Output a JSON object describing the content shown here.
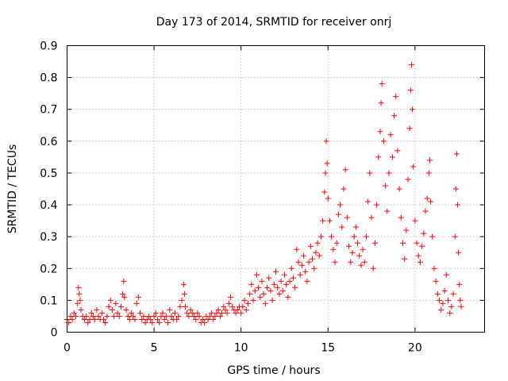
{
  "chart_data": {
    "type": "scatter",
    "title": "Day 173 of 2014, SRMTID for receiver onrj",
    "xlabel": "GPS time / hours",
    "ylabel": "SRMTID / TECUs",
    "xlim": [
      0,
      24
    ],
    "ylim": [
      0,
      0.9
    ],
    "xticks": [
      0,
      5,
      10,
      15,
      20
    ],
    "xtick_labels": [
      "0",
      "5",
      "10",
      "15",
      "20"
    ],
    "yticks": [
      0,
      0.1,
      0.2,
      0.3,
      0.4,
      0.5,
      0.6,
      0.7,
      0.8,
      0.9
    ],
    "ytick_labels": [
      "0",
      "0.1",
      "0.2",
      "0.3",
      "0.4",
      "0.5",
      "0.6",
      "0.7",
      "0.8",
      "0.9"
    ],
    "grid": true,
    "marker": "+",
    "color": "#ff0000",
    "series": [
      {
        "name": "SRMTID",
        "points": [
          [
            0.0,
            0.04
          ],
          [
            0.1,
            0.03
          ],
          [
            0.2,
            0.05
          ],
          [
            0.3,
            0.04
          ],
          [
            0.4,
            0.06
          ],
          [
            0.5,
            0.05
          ],
          [
            0.6,
            0.09
          ],
          [
            0.65,
            0.14
          ],
          [
            0.7,
            0.12
          ],
          [
            0.75,
            0.1
          ],
          [
            0.8,
            0.07
          ],
          [
            0.9,
            0.05
          ],
          [
            1.0,
            0.04
          ],
          [
            1.1,
            0.05
          ],
          [
            1.2,
            0.03
          ],
          [
            1.3,
            0.04
          ],
          [
            1.4,
            0.06
          ],
          [
            1.5,
            0.05
          ],
          [
            1.6,
            0.04
          ],
          [
            1.7,
            0.07
          ],
          [
            1.8,
            0.05
          ],
          [
            1.9,
            0.04
          ],
          [
            2.0,
            0.06
          ],
          [
            2.1,
            0.04
          ],
          [
            2.2,
            0.03
          ],
          [
            2.3,
            0.05
          ],
          [
            2.4,
            0.08
          ],
          [
            2.5,
            0.1
          ],
          [
            2.6,
            0.07
          ],
          [
            2.7,
            0.05
          ],
          [
            2.8,
            0.09
          ],
          [
            2.9,
            0.06
          ],
          [
            3.0,
            0.05
          ],
          [
            3.1,
            0.08
          ],
          [
            3.2,
            0.12
          ],
          [
            3.25,
            0.16
          ],
          [
            3.3,
            0.11
          ],
          [
            3.4,
            0.07
          ],
          [
            3.5,
            0.05
          ],
          [
            3.6,
            0.04
          ],
          [
            3.7,
            0.06
          ],
          [
            3.8,
            0.05
          ],
          [
            3.9,
            0.04
          ],
          [
            4.0,
            0.09
          ],
          [
            4.1,
            0.11
          ],
          [
            4.2,
            0.06
          ],
          [
            4.3,
            0.04
          ],
          [
            4.4,
            0.05
          ],
          [
            4.5,
            0.03
          ],
          [
            4.6,
            0.04
          ],
          [
            4.7,
            0.05
          ],
          [
            4.8,
            0.04
          ],
          [
            4.9,
            0.03
          ],
          [
            5.0,
            0.05
          ],
          [
            5.1,
            0.06
          ],
          [
            5.2,
            0.04
          ],
          [
            5.3,
            0.03
          ],
          [
            5.4,
            0.05
          ],
          [
            5.5,
            0.06
          ],
          [
            5.6,
            0.04
          ],
          [
            5.7,
            0.05
          ],
          [
            5.8,
            0.03
          ],
          [
            5.9,
            0.07
          ],
          [
            6.0,
            0.05
          ],
          [
            6.1,
            0.04
          ],
          [
            6.2,
            0.06
          ],
          [
            6.3,
            0.04
          ],
          [
            6.4,
            0.05
          ],
          [
            6.5,
            0.08
          ],
          [
            6.6,
            0.1
          ],
          [
            6.7,
            0.15
          ],
          [
            6.75,
            0.12
          ],
          [
            6.8,
            0.08
          ],
          [
            6.9,
            0.06
          ],
          [
            7.0,
            0.05
          ],
          [
            7.1,
            0.07
          ],
          [
            7.2,
            0.06
          ],
          [
            7.3,
            0.05
          ],
          [
            7.4,
            0.04
          ],
          [
            7.5,
            0.06
          ],
          [
            7.6,
            0.05
          ],
          [
            7.7,
            0.03
          ],
          [
            7.8,
            0.04
          ],
          [
            7.9,
            0.03
          ],
          [
            8.0,
            0.05
          ],
          [
            8.1,
            0.04
          ],
          [
            8.2,
            0.05
          ],
          [
            8.3,
            0.06
          ],
          [
            8.4,
            0.04
          ],
          [
            8.5,
            0.05
          ],
          [
            8.6,
            0.06
          ],
          [
            8.7,
            0.07
          ],
          [
            8.8,
            0.05
          ],
          [
            8.9,
            0.06
          ],
          [
            9.0,
            0.08
          ],
          [
            9.1,
            0.07
          ],
          [
            9.2,
            0.06
          ],
          [
            9.3,
            0.09
          ],
          [
            9.4,
            0.11
          ],
          [
            9.5,
            0.08
          ],
          [
            9.6,
            0.07
          ],
          [
            9.7,
            0.06
          ],
          [
            9.8,
            0.07
          ],
          [
            9.9,
            0.08
          ],
          [
            10.0,
            0.06
          ],
          [
            10.1,
            0.08
          ],
          [
            10.2,
            0.1
          ],
          [
            10.3,
            0.07
          ],
          [
            10.4,
            0.09
          ],
          [
            10.5,
            0.12
          ],
          [
            10.6,
            0.15
          ],
          [
            10.7,
            0.1
          ],
          [
            10.8,
            0.13
          ],
          [
            10.9,
            0.18
          ],
          [
            11.0,
            0.14
          ],
          [
            11.1,
            0.11
          ],
          [
            11.2,
            0.16
          ],
          [
            11.3,
            0.12
          ],
          [
            11.4,
            0.09
          ],
          [
            11.5,
            0.14
          ],
          [
            11.6,
            0.17
          ],
          [
            11.7,
            0.13
          ],
          [
            11.8,
            0.1
          ],
          [
            11.9,
            0.15
          ],
          [
            12.0,
            0.19
          ],
          [
            12.1,
            0.14
          ],
          [
            12.2,
            0.12
          ],
          [
            12.3,
            0.16
          ],
          [
            12.4,
            0.13
          ],
          [
            12.5,
            0.18
          ],
          [
            12.6,
            0.15
          ],
          [
            12.7,
            0.11
          ],
          [
            12.8,
            0.16
          ],
          [
            12.9,
            0.2
          ],
          [
            13.0,
            0.17
          ],
          [
            13.1,
            0.14
          ],
          [
            13.2,
            0.26
          ],
          [
            13.3,
            0.22
          ],
          [
            13.4,
            0.18
          ],
          [
            13.5,
            0.21
          ],
          [
            13.6,
            0.24
          ],
          [
            13.7,
            0.19
          ],
          [
            13.8,
            0.16
          ],
          [
            13.9,
            0.22
          ],
          [
            14.0,
            0.27
          ],
          [
            14.1,
            0.23
          ],
          [
            14.2,
            0.2
          ],
          [
            14.3,
            0.25
          ],
          [
            14.4,
            0.28
          ],
          [
            14.5,
            0.24
          ],
          [
            14.6,
            0.3
          ],
          [
            14.7,
            0.35
          ],
          [
            14.8,
            0.44
          ],
          [
            14.85,
            0.5
          ],
          [
            14.9,
            0.6
          ],
          [
            14.95,
            0.53
          ],
          [
            15.0,
            0.42
          ],
          [
            15.1,
            0.35
          ],
          [
            15.2,
            0.3
          ],
          [
            15.3,
            0.26
          ],
          [
            15.4,
            0.22
          ],
          [
            15.5,
            0.28
          ],
          [
            15.6,
            0.37
          ],
          [
            15.7,
            0.4
          ],
          [
            15.8,
            0.33
          ],
          [
            15.9,
            0.45
          ],
          [
            16.0,
            0.51
          ],
          [
            16.1,
            0.36
          ],
          [
            16.2,
            0.27
          ],
          [
            16.3,
            0.22
          ],
          [
            16.4,
            0.25
          ],
          [
            16.5,
            0.3
          ],
          [
            16.6,
            0.33
          ],
          [
            16.7,
            0.28
          ],
          [
            16.8,
            0.24
          ],
          [
            16.9,
            0.21
          ],
          [
            17.0,
            0.26
          ],
          [
            17.1,
            0.22
          ],
          [
            17.2,
            0.3
          ],
          [
            17.3,
            0.41
          ],
          [
            17.4,
            0.5
          ],
          [
            17.5,
            0.36
          ],
          [
            17.6,
            0.2
          ],
          [
            17.7,
            0.28
          ],
          [
            17.8,
            0.4
          ],
          [
            17.9,
            0.55
          ],
          [
            18.0,
            0.63
          ],
          [
            18.05,
            0.72
          ],
          [
            18.1,
            0.78
          ],
          [
            18.2,
            0.6
          ],
          [
            18.3,
            0.46
          ],
          [
            18.4,
            0.38
          ],
          [
            18.5,
            0.5
          ],
          [
            18.6,
            0.62
          ],
          [
            18.7,
            0.55
          ],
          [
            18.8,
            0.68
          ],
          [
            18.9,
            0.74
          ],
          [
            19.0,
            0.57
          ],
          [
            19.1,
            0.45
          ],
          [
            19.2,
            0.36
          ],
          [
            19.3,
            0.28
          ],
          [
            19.4,
            0.23
          ],
          [
            19.5,
            0.32
          ],
          [
            19.6,
            0.48
          ],
          [
            19.7,
            0.64
          ],
          [
            19.75,
            0.76
          ],
          [
            19.8,
            0.84
          ],
          [
            19.85,
            0.7
          ],
          [
            19.9,
            0.52
          ],
          [
            20.0,
            0.35
          ],
          [
            20.1,
            0.28
          ],
          [
            20.2,
            0.24
          ],
          [
            20.3,
            0.22
          ],
          [
            20.4,
            0.27
          ],
          [
            20.5,
            0.31
          ],
          [
            20.6,
            0.38
          ],
          [
            20.7,
            0.42
          ],
          [
            20.8,
            0.5
          ],
          [
            20.85,
            0.54
          ],
          [
            20.9,
            0.41
          ],
          [
            21.0,
            0.3
          ],
          [
            21.1,
            0.2
          ],
          [
            21.2,
            0.16
          ],
          [
            21.3,
            0.12
          ],
          [
            21.4,
            0.1
          ],
          [
            21.5,
            0.07
          ],
          [
            21.6,
            0.09
          ],
          [
            21.7,
            0.13
          ],
          [
            21.8,
            0.18
          ],
          [
            21.9,
            0.1
          ],
          [
            22.0,
            0.06
          ],
          [
            22.1,
            0.08
          ],
          [
            22.2,
            0.12
          ],
          [
            22.3,
            0.3
          ],
          [
            22.35,
            0.45
          ],
          [
            22.4,
            0.56
          ],
          [
            22.45,
            0.4
          ],
          [
            22.5,
            0.25
          ],
          [
            22.55,
            0.15
          ],
          [
            22.6,
            0.1
          ],
          [
            22.65,
            0.08
          ]
        ]
      }
    ]
  }
}
